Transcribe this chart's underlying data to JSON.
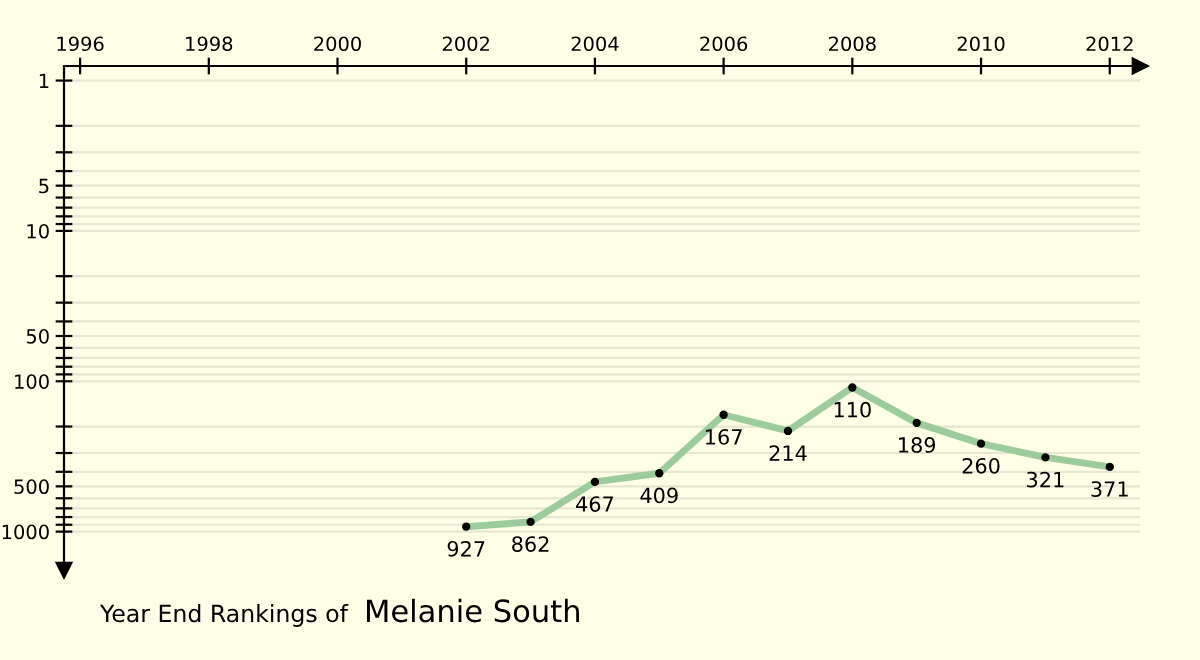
{
  "chart_data": {
    "type": "line",
    "title": "Year End Rankings of",
    "subtitle": "Melanie South",
    "x": [
      2002,
      2003,
      2004,
      2005,
      2006,
      2007,
      2008,
      2009,
      2010,
      2011,
      2012
    ],
    "series": [
      {
        "color": "#9ccc9c",
        "values": [
          927,
          862,
          467,
          409,
          167,
          214,
          110,
          189,
          260,
          321,
          371
        ]
      }
    ],
    "log": true,
    "data_labels": true,
    "marker": "circle",
    "line_style": "solid",
    "grid": "y",
    "xlim": [
      1995.75,
      2012.47
    ],
    "xticks": [
      1996,
      1998,
      2000,
      2002,
      2004,
      2006,
      2008,
      2010,
      2012
    ],
    "ylim": [
      1800,
      0.8
    ],
    "yticks": [
      1,
      {
        "value": 2,
        "label": null
      },
      {
        "value": 3,
        "label": null
      },
      {
        "value": 4,
        "label": null
      },
      5,
      {
        "value": 6,
        "label": null
      },
      {
        "value": 7,
        "label": null
      },
      {
        "value": 8,
        "label": null
      },
      {
        "value": 9,
        "label": null
      },
      10,
      {
        "value": 20,
        "label": null
      },
      {
        "value": 30,
        "label": null
      },
      {
        "value": 40,
        "label": null
      },
      50,
      {
        "value": 60,
        "label": null
      },
      {
        "value": 70,
        "label": null
      },
      {
        "value": 80,
        "label": null
      },
      {
        "value": 90,
        "label": null
      },
      100,
      {
        "value": 200,
        "label": null
      },
      {
        "value": 300,
        "label": null
      },
      {
        "value": 400,
        "label": null
      },
      500,
      {
        "value": 600,
        "label": null
      },
      {
        "value": 700,
        "label": null
      },
      {
        "value": 800,
        "label": null
      },
      {
        "value": 900,
        "label": null
      },
      1000
    ]
  }
}
